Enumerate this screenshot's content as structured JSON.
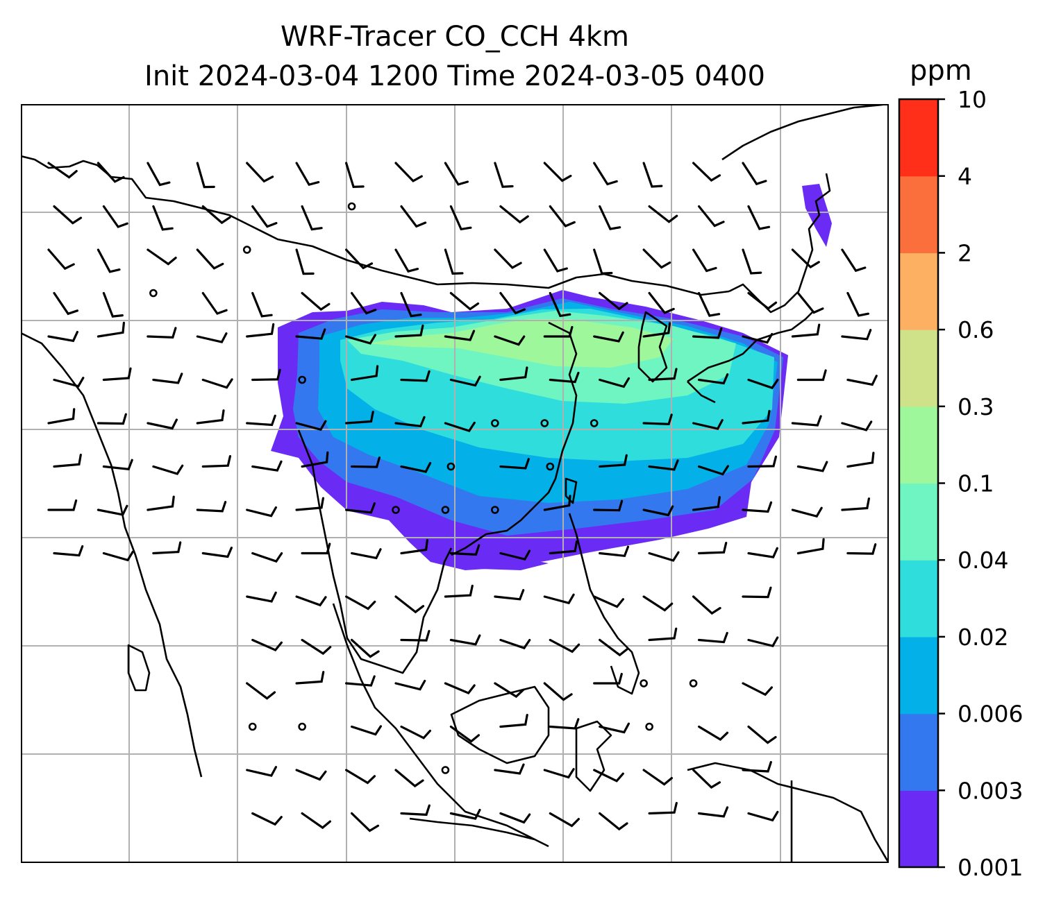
{
  "title": {
    "line1": "WRF-Tracer CO_CCH 4km",
    "line2": "Init 2024-03-04 1200 Time 2024-03-05 0400"
  },
  "colorbar": {
    "unit": "ppm",
    "levels": [
      "0.001",
      "0.003",
      "0.006",
      "0.02",
      "0.04",
      "0.1",
      "0.3",
      "0.6",
      "2",
      "4",
      "10"
    ],
    "colors": [
      "#6a2cf5",
      "#3478f0",
      "#04b0e8",
      "#2fdedc",
      "#6ff5c2",
      "#9ef79a",
      "#cfe189",
      "#fdaf62",
      "#fb6f3d",
      "#ff2f1a"
    ]
  },
  "map": {
    "gridlines_x": 7,
    "gridlines_y": 6,
    "icons": [
      "wind-barb-icon",
      "calm-circle-icon"
    ]
  },
  "plume": {
    "levels_shown": [
      "0.001",
      "0.003",
      "0.006",
      "0.02",
      "0.04",
      "0.1"
    ]
  }
}
